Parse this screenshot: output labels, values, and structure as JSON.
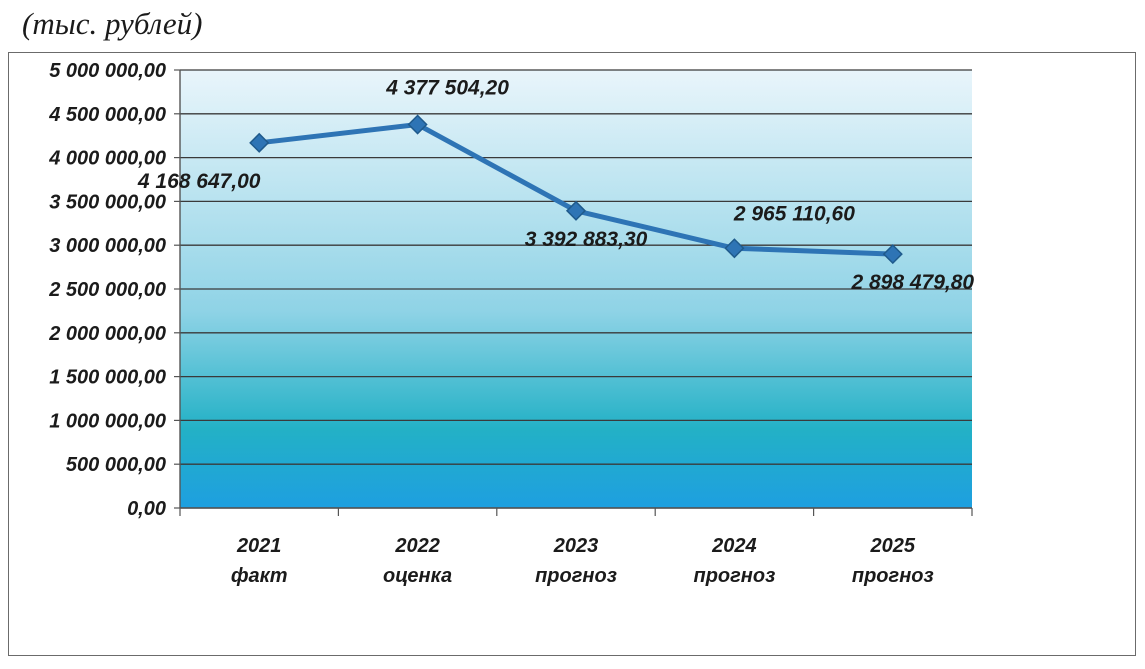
{
  "unit_caption": "(тыс. рублей)",
  "chart_data": {
    "type": "line",
    "categories": [
      "2021 факт",
      "2022 оценка",
      "2023 прогноз",
      "2024 прогноз",
      "2025 прогноз"
    ],
    "category_lines": [
      [
        "2021",
        "факт"
      ],
      [
        "2022",
        "оценка"
      ],
      [
        "2023",
        "прогноз"
      ],
      [
        "2024",
        "прогноз"
      ],
      [
        "2025",
        "прогноз"
      ]
    ],
    "values": [
      4168647.0,
      4377504.2,
      3392883.3,
      2965110.6,
      2898479.8
    ],
    "data_labels": [
      "4 168 647,00",
      "4 377 504,20",
      "3 392 883,30",
      "2 965 110,60",
      "2 898 479,80"
    ],
    "ylim": [
      0,
      5000000
    ],
    "y_ticks": [
      0,
      500000,
      1000000,
      1500000,
      2000000,
      2500000,
      3000000,
      3500000,
      4000000,
      4500000,
      5000000
    ],
    "y_tick_labels": [
      "0,00",
      "500 000,00",
      "1 000 000,00",
      "1 500 000,00",
      "2 000 000,00",
      "2 500 000,00",
      "3 000 000,00",
      "3 500 000,00",
      "4 000 000,00",
      "4 500 000,00",
      "5 000 000,00"
    ],
    "grid": true,
    "legend": "none",
    "colors": {
      "line": "#2e74b5",
      "marker": "#2e74b5",
      "plot_top": "#e9f5fb",
      "plot_mid": "#8fd3e6",
      "plot_lower": "#23b1c6",
      "plot_bottom": "#1e9fe0",
      "grid": "#3a3a3a"
    }
  }
}
